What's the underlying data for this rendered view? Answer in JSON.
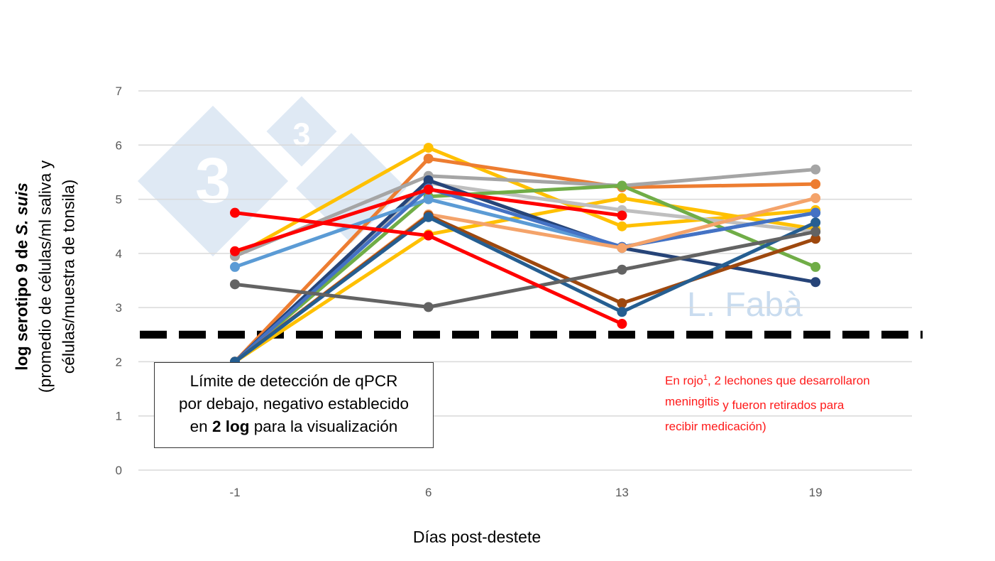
{
  "chart_data": {
    "type": "line",
    "categories": [
      "-1",
      "6",
      "13",
      "19"
    ],
    "xlabel": "Días post-destete",
    "ylabel_main": "log serotipo 9 de ",
    "ylabel_species": "S. suis",
    "ylabel_sub1": "(promedio de células/ml saliva y",
    "ylabel_sub2": "células/muestra de tonsila)",
    "ylim": [
      0,
      7
    ],
    "yticks": [
      "0",
      "1",
      "2",
      "3",
      "4",
      "5",
      "6",
      "7"
    ],
    "grid": true,
    "detection_limit": 2.5,
    "series": [
      {
        "color": "#FFC000",
        "values": [
          3.95,
          5.95,
          4.5,
          4.8
        ]
      },
      {
        "color": "#FFC000",
        "values": [
          2,
          4.35,
          5.02,
          4.45
        ]
      },
      {
        "color": "#ED7D31",
        "values": [
          2,
          5.75,
          5.22,
          5.28
        ]
      },
      {
        "color": "#A5A5A5",
        "values": [
          3.95,
          5.43,
          5.25,
          5.55
        ]
      },
      {
        "color": "#BFBFBF",
        "values": [
          2,
          5.3,
          4.8,
          4.4
        ]
      },
      {
        "color": "#70AD47",
        "values": [
          2,
          5.05,
          5.25,
          3.75
        ]
      },
      {
        "color": "#264478",
        "values": [
          2,
          5.35,
          4.1,
          3.47
        ]
      },
      {
        "color": "#5B9BD5",
        "values": [
          3.75,
          5.0,
          4.12,
          4.75
        ]
      },
      {
        "color": "#4472C4",
        "values": [
          2,
          5.2,
          4.12,
          4.75
        ]
      },
      {
        "color": "#F4A36A",
        "values": [
          2,
          4.72,
          4.1,
          5.02
        ]
      },
      {
        "color": "#9E480E",
        "values": [
          2,
          4.7,
          3.08,
          4.27
        ]
      },
      {
        "color": "#255E91",
        "values": [
          2,
          4.67,
          2.92,
          4.57
        ]
      },
      {
        "color": "#636363",
        "values": [
          3.43,
          3.01,
          3.7,
          4.4
        ]
      },
      {
        "color": "#FF0000",
        "values": [
          4.75,
          4.33,
          2.7,
          null
        ]
      },
      {
        "color": "#FF0000",
        "values": [
          4.04,
          5.18,
          4.7,
          null
        ]
      }
    ]
  },
  "annotation_box": {
    "line1": "Límite de detección de qPCR",
    "line2": "por debajo, negativo establecido",
    "line3_pre": "en ",
    "line3_bold": "2 log",
    "line3_post": " para la visualización"
  },
  "red_note": {
    "part1": "En rojo",
    "sup": "1",
    "part2": ", 2 lechones que desarrollaron",
    "part3": "meningitis",
    "part4": " y fueron retirados para",
    "part5": "recibir medicación)"
  },
  "watermark": {
    "logo_text": "3",
    "author": "L. Fabà"
  }
}
